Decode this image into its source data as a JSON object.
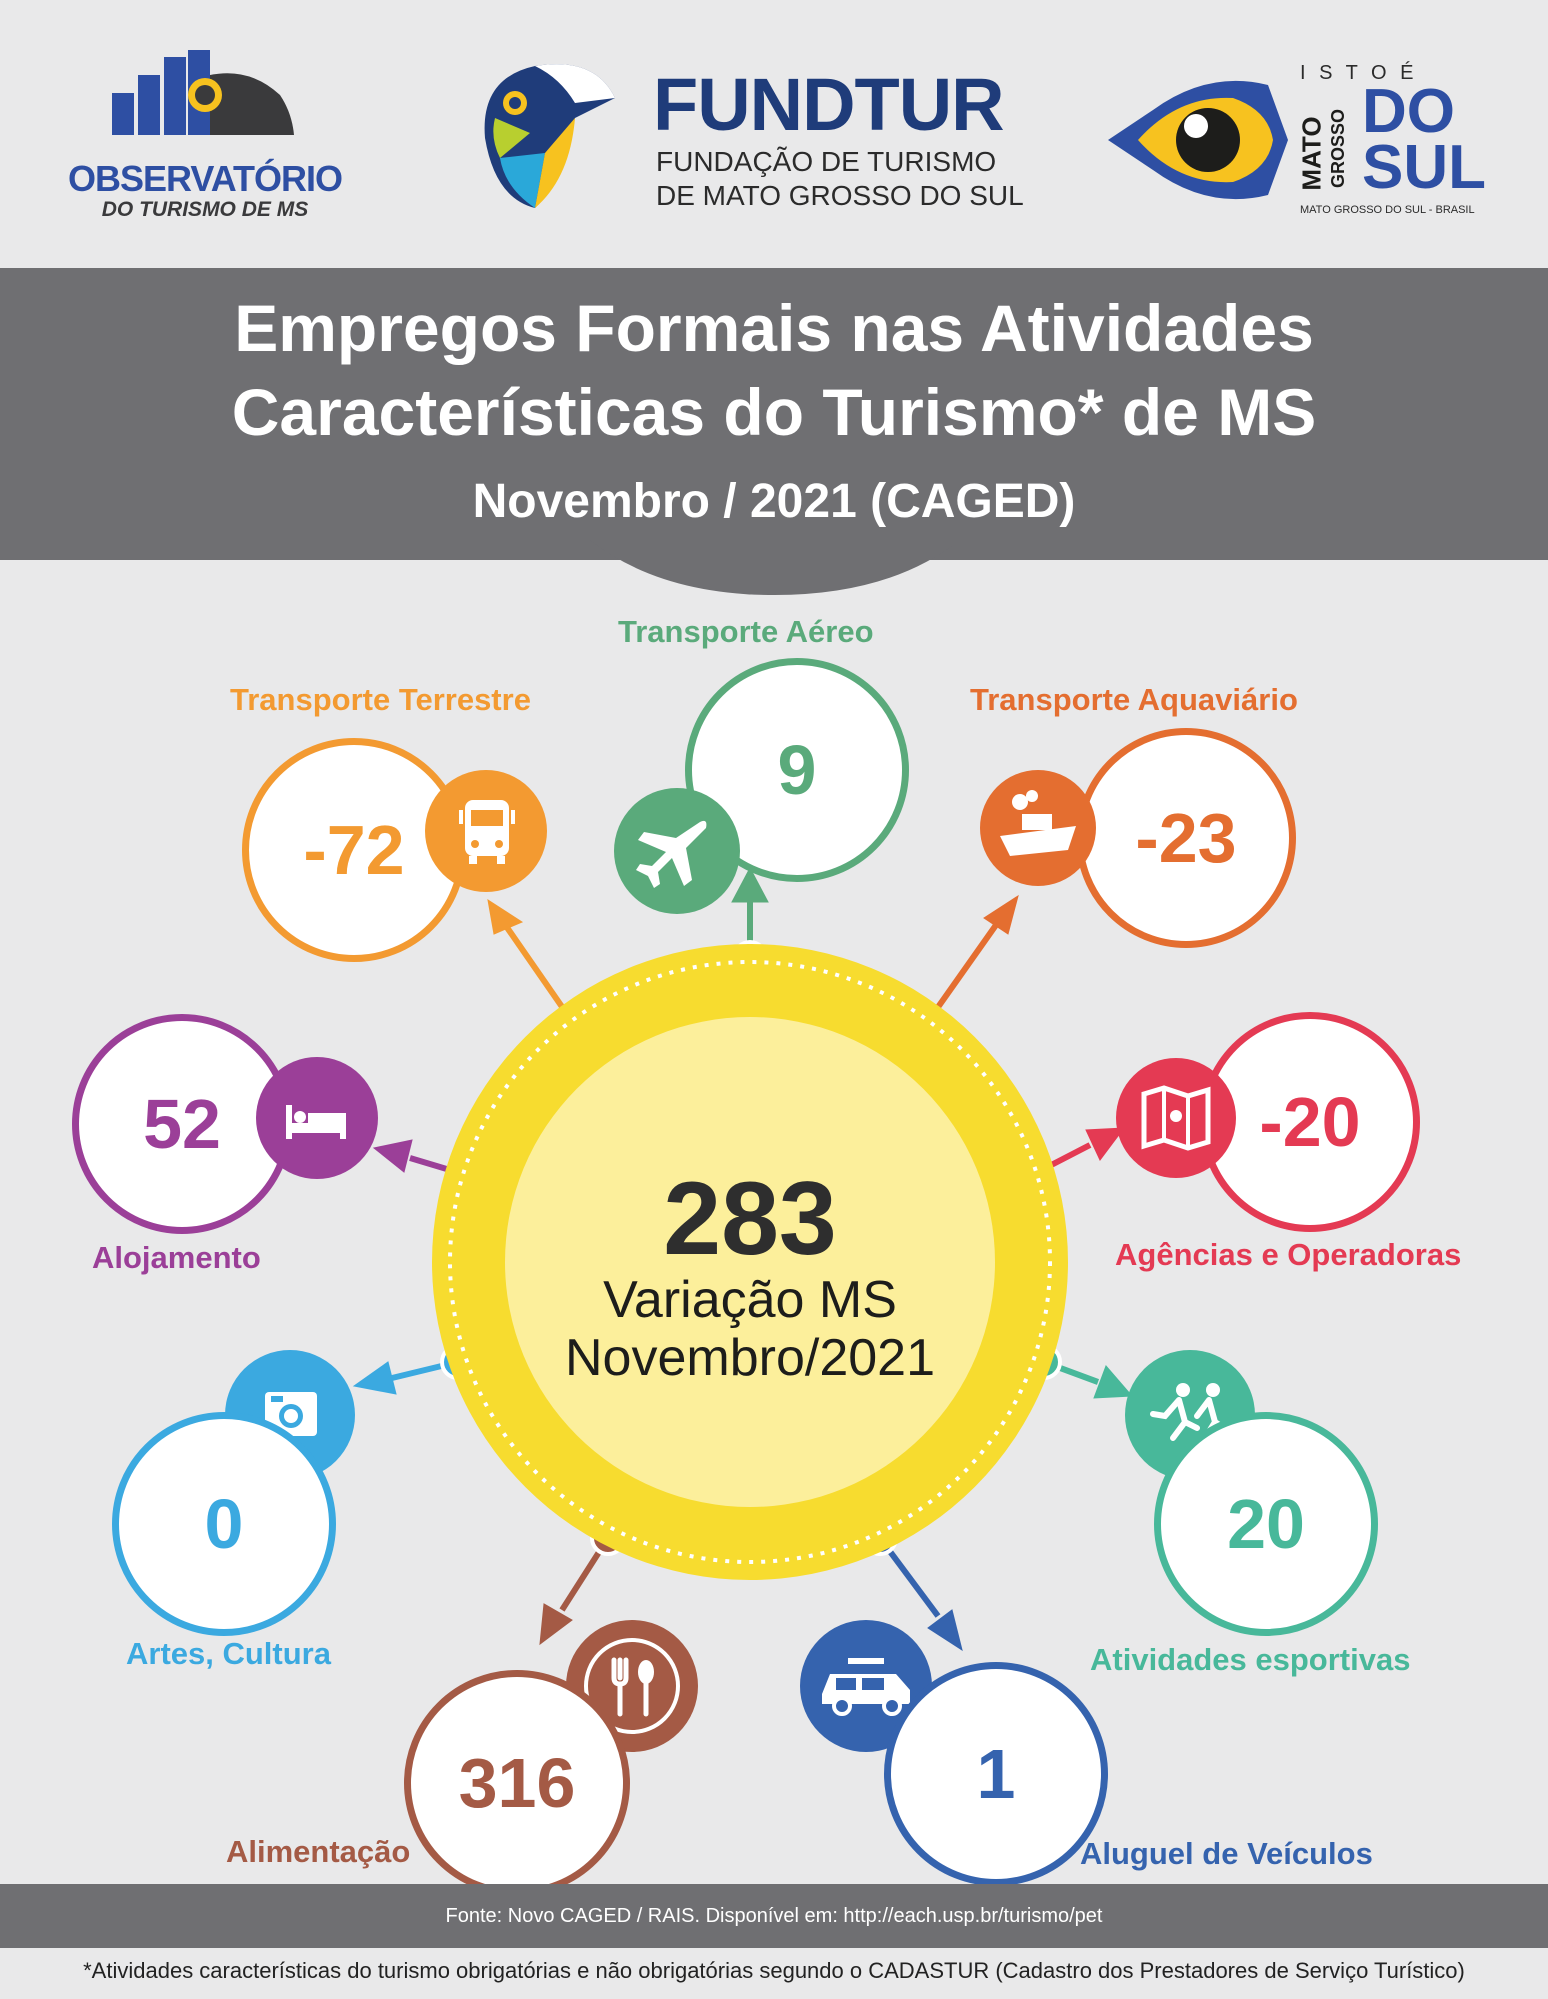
{
  "header": {
    "observatorio": {
      "line1": "OBSERVATÓRIO",
      "line2": "DO TURISMO DE MS"
    },
    "fundtur": {
      "name": "FUNDTUR",
      "line1": "FUNDAÇÃO DE TURISMO",
      "line2": "DE MATO GROSSO DO SUL"
    },
    "ms_logo": {
      "top": "I S T O  É",
      "mato": "MATO",
      "grosso": "GROSSO",
      "do": "DO",
      "sul": "SUL",
      "bottom": "MATO GROSSO DO SUL - BRASIL"
    }
  },
  "title": {
    "line1": "Empregos Formais nas Atividades",
    "line2": "Características do Turismo* de MS",
    "subtitle": "Novembro / 2021 (CAGED)"
  },
  "center": {
    "value": "283",
    "label1": "Variação MS",
    "label2": "Novembro/2021",
    "color": "#f7dc2f"
  },
  "categories": [
    {
      "name": "Transporte Terrestre",
      "value": "-72",
      "color": "#f39a31",
      "icon": "bus-icon"
    },
    {
      "name": "Transporte Aéreo",
      "value": "9",
      "color": "#5aaa7b",
      "icon": "airplane-icon"
    },
    {
      "name": "Transporte Aquaviário",
      "value": "-23",
      "color": "#e46e30",
      "icon": "ship-icon"
    },
    {
      "name": "Alojamento",
      "value": "52",
      "color": "#9b3f98",
      "icon": "bed-icon"
    },
    {
      "name": "Agências e Operadoras",
      "value": "-20",
      "color": "#e43a53",
      "icon": "map-icon"
    },
    {
      "name": "Artes, Cultura",
      "value": "0",
      "color": "#3ba9e0",
      "icon": "camera-icon"
    },
    {
      "name": "Atividades esportivas",
      "value": "20",
      "color": "#48b89a",
      "icon": "runners-icon"
    },
    {
      "name": "Alimentação",
      "value": "316",
      "color": "#a45a45",
      "icon": "cutlery-icon"
    },
    {
      "name": "Aluguel de Veículos",
      "value": "1",
      "color": "#3563ae",
      "icon": "car-icon"
    }
  ],
  "footer": {
    "source": "Fonte: Novo CAGED / RAIS. Disponível em: http://each.usp.br/turismo/pet",
    "note": "*Atividades características do turismo obrigatórias e não obrigatórias segundo o CADASTUR (Cadastro dos Prestadores de Serviço Turístico)"
  }
}
